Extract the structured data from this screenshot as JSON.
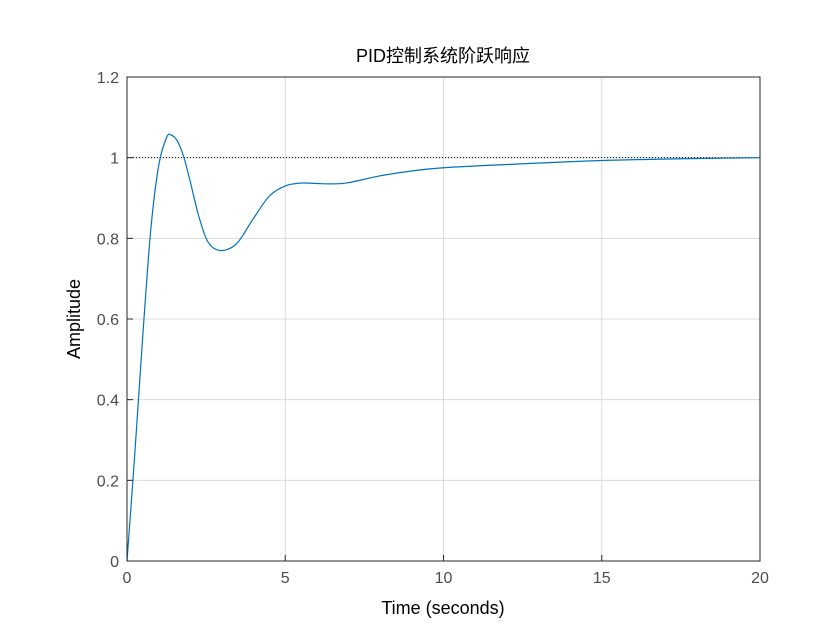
{
  "chart_data": {
    "type": "line",
    "title": "PID控制系统阶跃响应",
    "xlabel": "Time (seconds)",
    "ylabel": "Amplitude",
    "xlim": [
      0,
      20
    ],
    "ylim": [
      0,
      1.2
    ],
    "xticks": [
      "0",
      "5",
      "10",
      "15",
      "20"
    ],
    "yticks": [
      "0",
      "0.2",
      "0.4",
      "0.6",
      "0.8",
      "1",
      "1.2"
    ],
    "grid": true,
    "reference_line": {
      "y": 1,
      "style": "dotted",
      "color": "#000000"
    },
    "series": [
      {
        "color": "#0072bd",
        "x": [
          0,
          0.25,
          0.5,
          0.75,
          1.0,
          1.25,
          1.4,
          1.6,
          1.8,
          2.0,
          2.25,
          2.5,
          2.75,
          3.1,
          3.5,
          4.0,
          4.5,
          5.0,
          5.5,
          6.0,
          6.5,
          7.0,
          8.0,
          9.0,
          10,
          12,
          15,
          18,
          20
        ],
        "y": [
          0,
          0.27,
          0.56,
          0.82,
          0.98,
          1.05,
          1.056,
          1.04,
          1.0,
          0.94,
          0.86,
          0.8,
          0.775,
          0.771,
          0.79,
          0.85,
          0.905,
          0.93,
          0.937,
          0.936,
          0.935,
          0.938,
          0.955,
          0.967,
          0.975,
          0.983,
          0.993,
          0.998,
          1.0
        ]
      }
    ]
  }
}
